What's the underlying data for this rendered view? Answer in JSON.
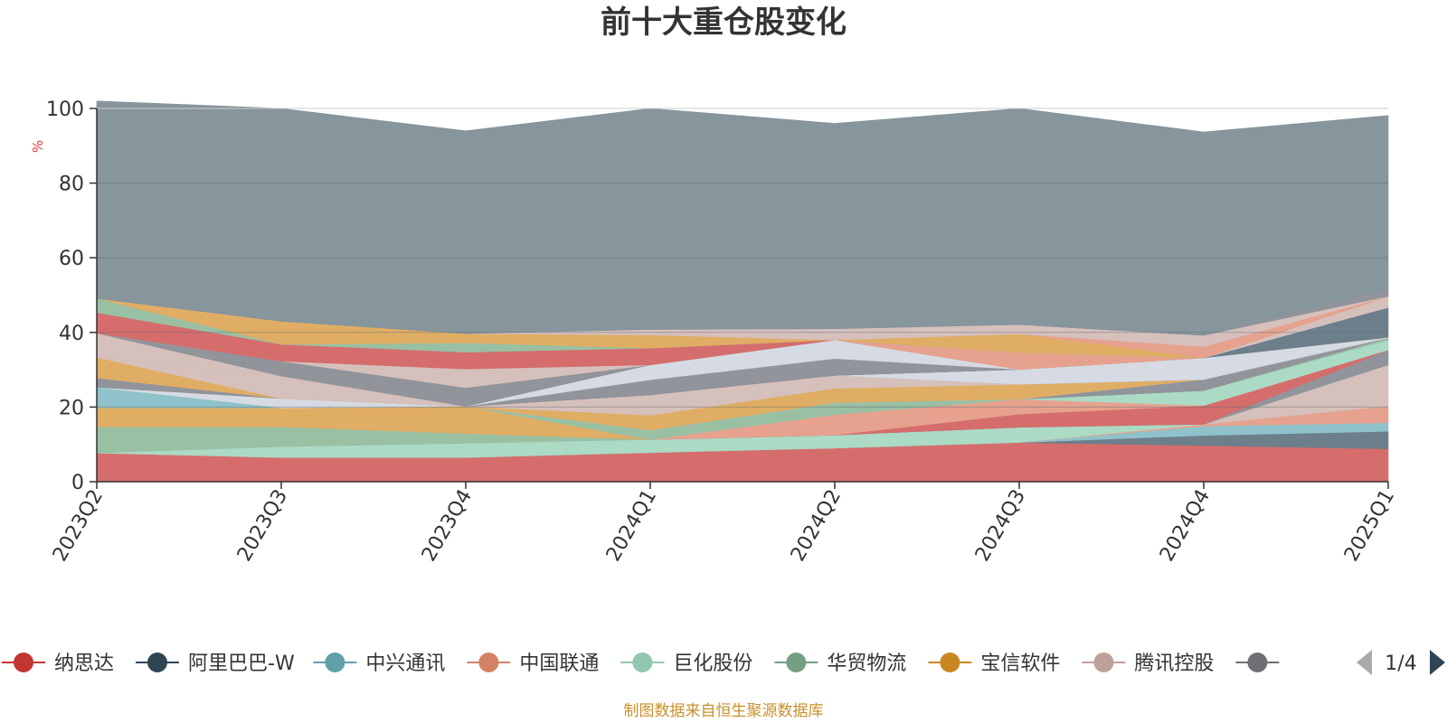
{
  "chart_data": {
    "type": "area",
    "stacked": true,
    "title": "前十大重仓股变化",
    "ylabel": "%",
    "ylim": [
      0,
      100
    ],
    "yticks": [
      0,
      20,
      40,
      60,
      80,
      100
    ],
    "grid": true,
    "categories": [
      "2023Q2",
      "2023Q3",
      "2023Q4",
      "2024Q1",
      "2024Q2",
      "2024Q3",
      "2024Q4",
      "2025Q1"
    ],
    "series": [
      {
        "name": "纳思达",
        "color": "#d46a6a",
        "values": [
          7.7,
          6.5,
          6.5,
          7.8,
          9.0,
          10.5,
          9.7,
          8.8
        ]
      },
      {
        "name": "阿里巴巴-W",
        "color": "#6b7c8a",
        "values": [
          0,
          0,
          0,
          0,
          0,
          0,
          2.7,
          4.7
        ]
      },
      {
        "name": "中兴通讯",
        "color": "#8dc1c9",
        "values": [
          0,
          0,
          0,
          0,
          0,
          0,
          2.5,
          2.3
        ]
      },
      {
        "name": "中国联通",
        "color": "#e6a08c",
        "values": [
          0,
          0,
          0,
          0,
          0,
          0,
          0.5,
          4.5
        ]
      },
      {
        "name": "巨化股份",
        "color": "#a9d9c4",
        "values": [
          0,
          2.9,
          3.8,
          3.5,
          3.5,
          4.1,
          0,
          0
        ]
      },
      {
        "name": "华贸物流",
        "color": "#98bfa2",
        "values": [
          7.0,
          5.3,
          2.6,
          0,
          0,
          0,
          0,
          0
        ]
      },
      {
        "name": "宝信软件",
        "color": "#deac61",
        "values": [
          5.1,
          5.1,
          7.3,
          0,
          0,
          0,
          0,
          0
        ]
      },
      {
        "name": "腾讯控股",
        "color": "#d5bfbb",
        "values": [
          0,
          0,
          0,
          0,
          0,
          0,
          0,
          11.0
        ]
      },
      {
        "name": "",
        "color": "#8f9299",
        "values": [
          0,
          0,
          0,
          0,
          0,
          0,
          0,
          4.0
        ]
      },
      {
        "name": "",
        "color": "#d46a6a",
        "values": [
          0,
          0,
          0,
          0,
          0,
          3.5,
          5.0,
          0
        ]
      },
      {
        "name": "",
        "color": "#e6a08c",
        "values": [
          0,
          0,
          0,
          0,
          5.5,
          4.0,
          0,
          0
        ]
      },
      {
        "name": "",
        "color": "#a9d9c4",
        "values": [
          0,
          0,
          0,
          0,
          0,
          0,
          4.0,
          2.7
        ]
      },
      {
        "name": "",
        "color": "#98bfa2",
        "values": [
          0,
          0,
          0,
          2.5,
          3.2,
          0,
          0,
          0
        ]
      },
      {
        "name": "",
        "color": "#98bfa2",
        "values": [
          0,
          0,
          0,
          0,
          0,
          0,
          0,
          0.5
        ]
      },
      {
        "name": "",
        "color": "#8f9299",
        "values": [
          0,
          0,
          0,
          0,
          0,
          0,
          3.0,
          0
        ]
      },
      {
        "name": "",
        "color": "#d5dae2",
        "values": [
          0,
          0,
          0,
          0,
          0,
          0,
          0,
          0.2
        ]
      },
      {
        "name": "",
        "color": "#deac61",
        "values": [
          0,
          0,
          0,
          4.0,
          3.8,
          4.0,
          0,
          0
        ]
      },
      {
        "name": "",
        "color": "#d5bfbb",
        "values": [
          0,
          0,
          0,
          5.5,
          3.5,
          0,
          0,
          0
        ]
      },
      {
        "name": "",
        "color": "#8f9299",
        "values": [
          0,
          0,
          0,
          0,
          0,
          0,
          0,
          0
        ]
      },
      {
        "name": "",
        "color": "#d5dae2",
        "values": [
          0,
          0,
          0,
          0,
          0,
          4.0,
          5.8,
          0
        ]
      },
      {
        "name": "",
        "color": "#d46a6a",
        "values": [
          0,
          0,
          0,
          0,
          0,
          0,
          0,
          0
        ]
      },
      {
        "name": "",
        "color": "#8dc1c9",
        "values": [
          5.5,
          0,
          0,
          0,
          0,
          0,
          0,
          0
        ]
      },
      {
        "name": "",
        "color": "#d5dae2",
        "values": [
          0,
          2.5,
          0,
          0,
          0,
          0,
          0,
          0
        ]
      },
      {
        "name": "",
        "color": "#8f9299",
        "values": [
          2.5,
          0,
          0,
          0,
          0,
          0,
          0,
          0
        ]
      },
      {
        "name": "",
        "color": "#deac61",
        "values": [
          5.5,
          0,
          0,
          0,
          0,
          0,
          0,
          0
        ]
      },
      {
        "name": "",
        "color": "#d5bfbb",
        "values": [
          0,
          6.0,
          0,
          0,
          0,
          0,
          0,
          0
        ]
      },
      {
        "name": "",
        "color": "#6b7c8a",
        "values": [
          0,
          0,
          0,
          0,
          0,
          0,
          0,
          8.0
        ]
      },
      {
        "name": "",
        "color": "#8f9299",
        "values": [
          0,
          0,
          0,
          4.0,
          4.5,
          0,
          0,
          0
        ]
      },
      {
        "name": "",
        "color": "#d5dae2",
        "values": [
          0,
          0,
          0,
          4.0,
          5.0,
          0,
          0,
          0
        ]
      },
      {
        "name": "",
        "color": "#d5bfbb",
        "values": [
          0,
          0,
          0,
          0,
          0,
          0,
          0,
          3.0
        ]
      },
      {
        "name": "",
        "color": "#deac61",
        "values": [
          0,
          0,
          0,
          0,
          0,
          0,
          0,
          0
        ]
      },
      {
        "name": "",
        "color": "#e6a08c",
        "values": [
          0,
          0,
          0,
          0,
          0,
          4.5,
          0,
          0
        ]
      },
      {
        "name": "",
        "color": "#a9d9c4",
        "values": [
          0,
          0,
          0,
          0,
          0,
          0,
          0,
          0
        ]
      },
      {
        "name": "",
        "color": "#d5bfbb",
        "values": [
          6.5,
          0,
          0,
          0,
          0,
          0,
          0,
          0
        ]
      },
      {
        "name": "",
        "color": "#8f9299",
        "values": [
          0,
          4.0,
          5.0,
          0,
          0,
          0,
          0,
          0
        ]
      },
      {
        "name": "",
        "color": "#d5bfbb",
        "values": [
          0,
          0,
          5.0,
          0,
          0,
          0,
          0,
          0
        ]
      },
      {
        "name": "",
        "color": "#d46a6a",
        "values": [
          5.5,
          4.5,
          4.5,
          4.5,
          0,
          0,
          0,
          0
        ]
      },
      {
        "name": "",
        "color": "#98bfa2",
        "values": [
          3.8,
          0,
          2.5,
          0,
          0,
          0,
          0,
          0
        ]
      },
      {
        "name": "",
        "color": "#deac61",
        "values": [
          0,
          6.2,
          2.5,
          3.5,
          0,
          5.0,
          0,
          0
        ]
      },
      {
        "name": "",
        "color": "#e6a08c",
        "values": [
          0,
          0,
          0,
          0,
          0,
          0,
          3.0,
          0
        ]
      },
      {
        "name": "",
        "color": "#d5bfbb",
        "values": [
          0,
          0,
          0,
          1.5,
          3.0,
          2.5,
          3.0,
          0
        ]
      },
      {
        "name": "",
        "color": "#8f9299",
        "values": [
          0,
          0,
          0,
          0,
          0,
          0,
          0,
          2.0
        ]
      },
      {
        "name": "",
        "color": "#85939b",
        "values": [
          52.9,
          57.0,
          54.3,
          59.2,
          55.0,
          57.9,
          54.5,
          46.4
        ]
      }
    ],
    "legend": {
      "position": "bottom",
      "page": "1/4"
    },
    "source": "制图数据来自恒生聚源数据库"
  }
}
